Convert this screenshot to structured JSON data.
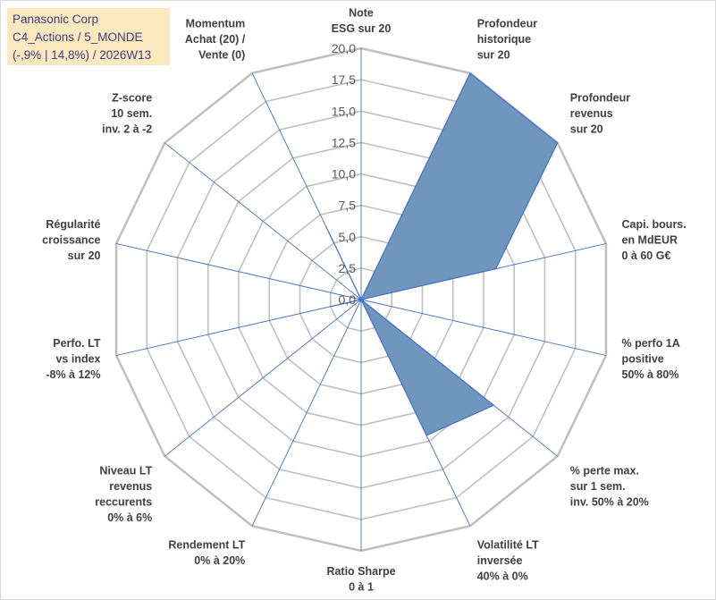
{
  "info": {
    "line1": "Panasonic Corp",
    "line2": "C4_Actions / 5_MONDE",
    "line3": "(-,9% | 14,8%) / 2026W13"
  },
  "colors": {
    "fill": "#7096be",
    "stroke": "#4472c4",
    "grid": "#bfbfbf",
    "spoke": "#4472c4",
    "info_bg": "#fde9c0",
    "info_text": "#3f3f7f"
  },
  "chart_data": {
    "type": "radar",
    "title": "",
    "rmin": 0,
    "rmax": 20,
    "rstep": 2.5,
    "ticks": [
      "0,0",
      "2,5",
      "5,0",
      "7,5",
      "10,0",
      "12,5",
      "15,0",
      "17,5",
      "20,0"
    ],
    "axes": [
      {
        "label": [
          "Note",
          "ESG sur 20"
        ],
        "value": 0
      },
      {
        "label": [
          "Profondeur",
          "historique",
          "sur 20"
        ],
        "value": 20
      },
      {
        "label": [
          "Profondeur",
          "revenus",
          "sur 20"
        ],
        "value": 20
      },
      {
        "label": [
          "Capi. bours.",
          "en MdEUR",
          "0 à 60 G€"
        ],
        "value": 11
      },
      {
        "label": [
          "% perfo 1A",
          "positive",
          "50% à 80%"
        ],
        "value": 0
      },
      {
        "label": [
          "% perte max.",
          "sur 1 sem.",
          "inv. 50% à 20%"
        ],
        "value": 13.5
      },
      {
        "label": [
          "Volatilité LT",
          "inversée",
          "40% à 0%"
        ],
        "value": 12
      },
      {
        "label": [
          "Ratio Sharpe",
          "0 à 1"
        ],
        "value": 0
      },
      {
        "label": [
          "Rendement LT",
          "0% à 20%"
        ],
        "value": 0
      },
      {
        "label": [
          "Niveau LT",
          "revenus",
          "reccurents",
          "0% à 6%"
        ],
        "value": 0
      },
      {
        "label": [
          "Perfo. LT",
          "vs index",
          "-8% à 12%"
        ],
        "value": 2.5
      },
      {
        "label": [
          "Régularité",
          "croissance",
          "sur 20"
        ],
        "value": 0
      },
      {
        "label": [
          "Z-score",
          "10 sem.",
          "inv. 2 à -2"
        ],
        "value": 0
      },
      {
        "label": [
          "Momentum",
          "Achat (20) /",
          "Vente (0)"
        ],
        "value": 6.5
      }
    ]
  }
}
